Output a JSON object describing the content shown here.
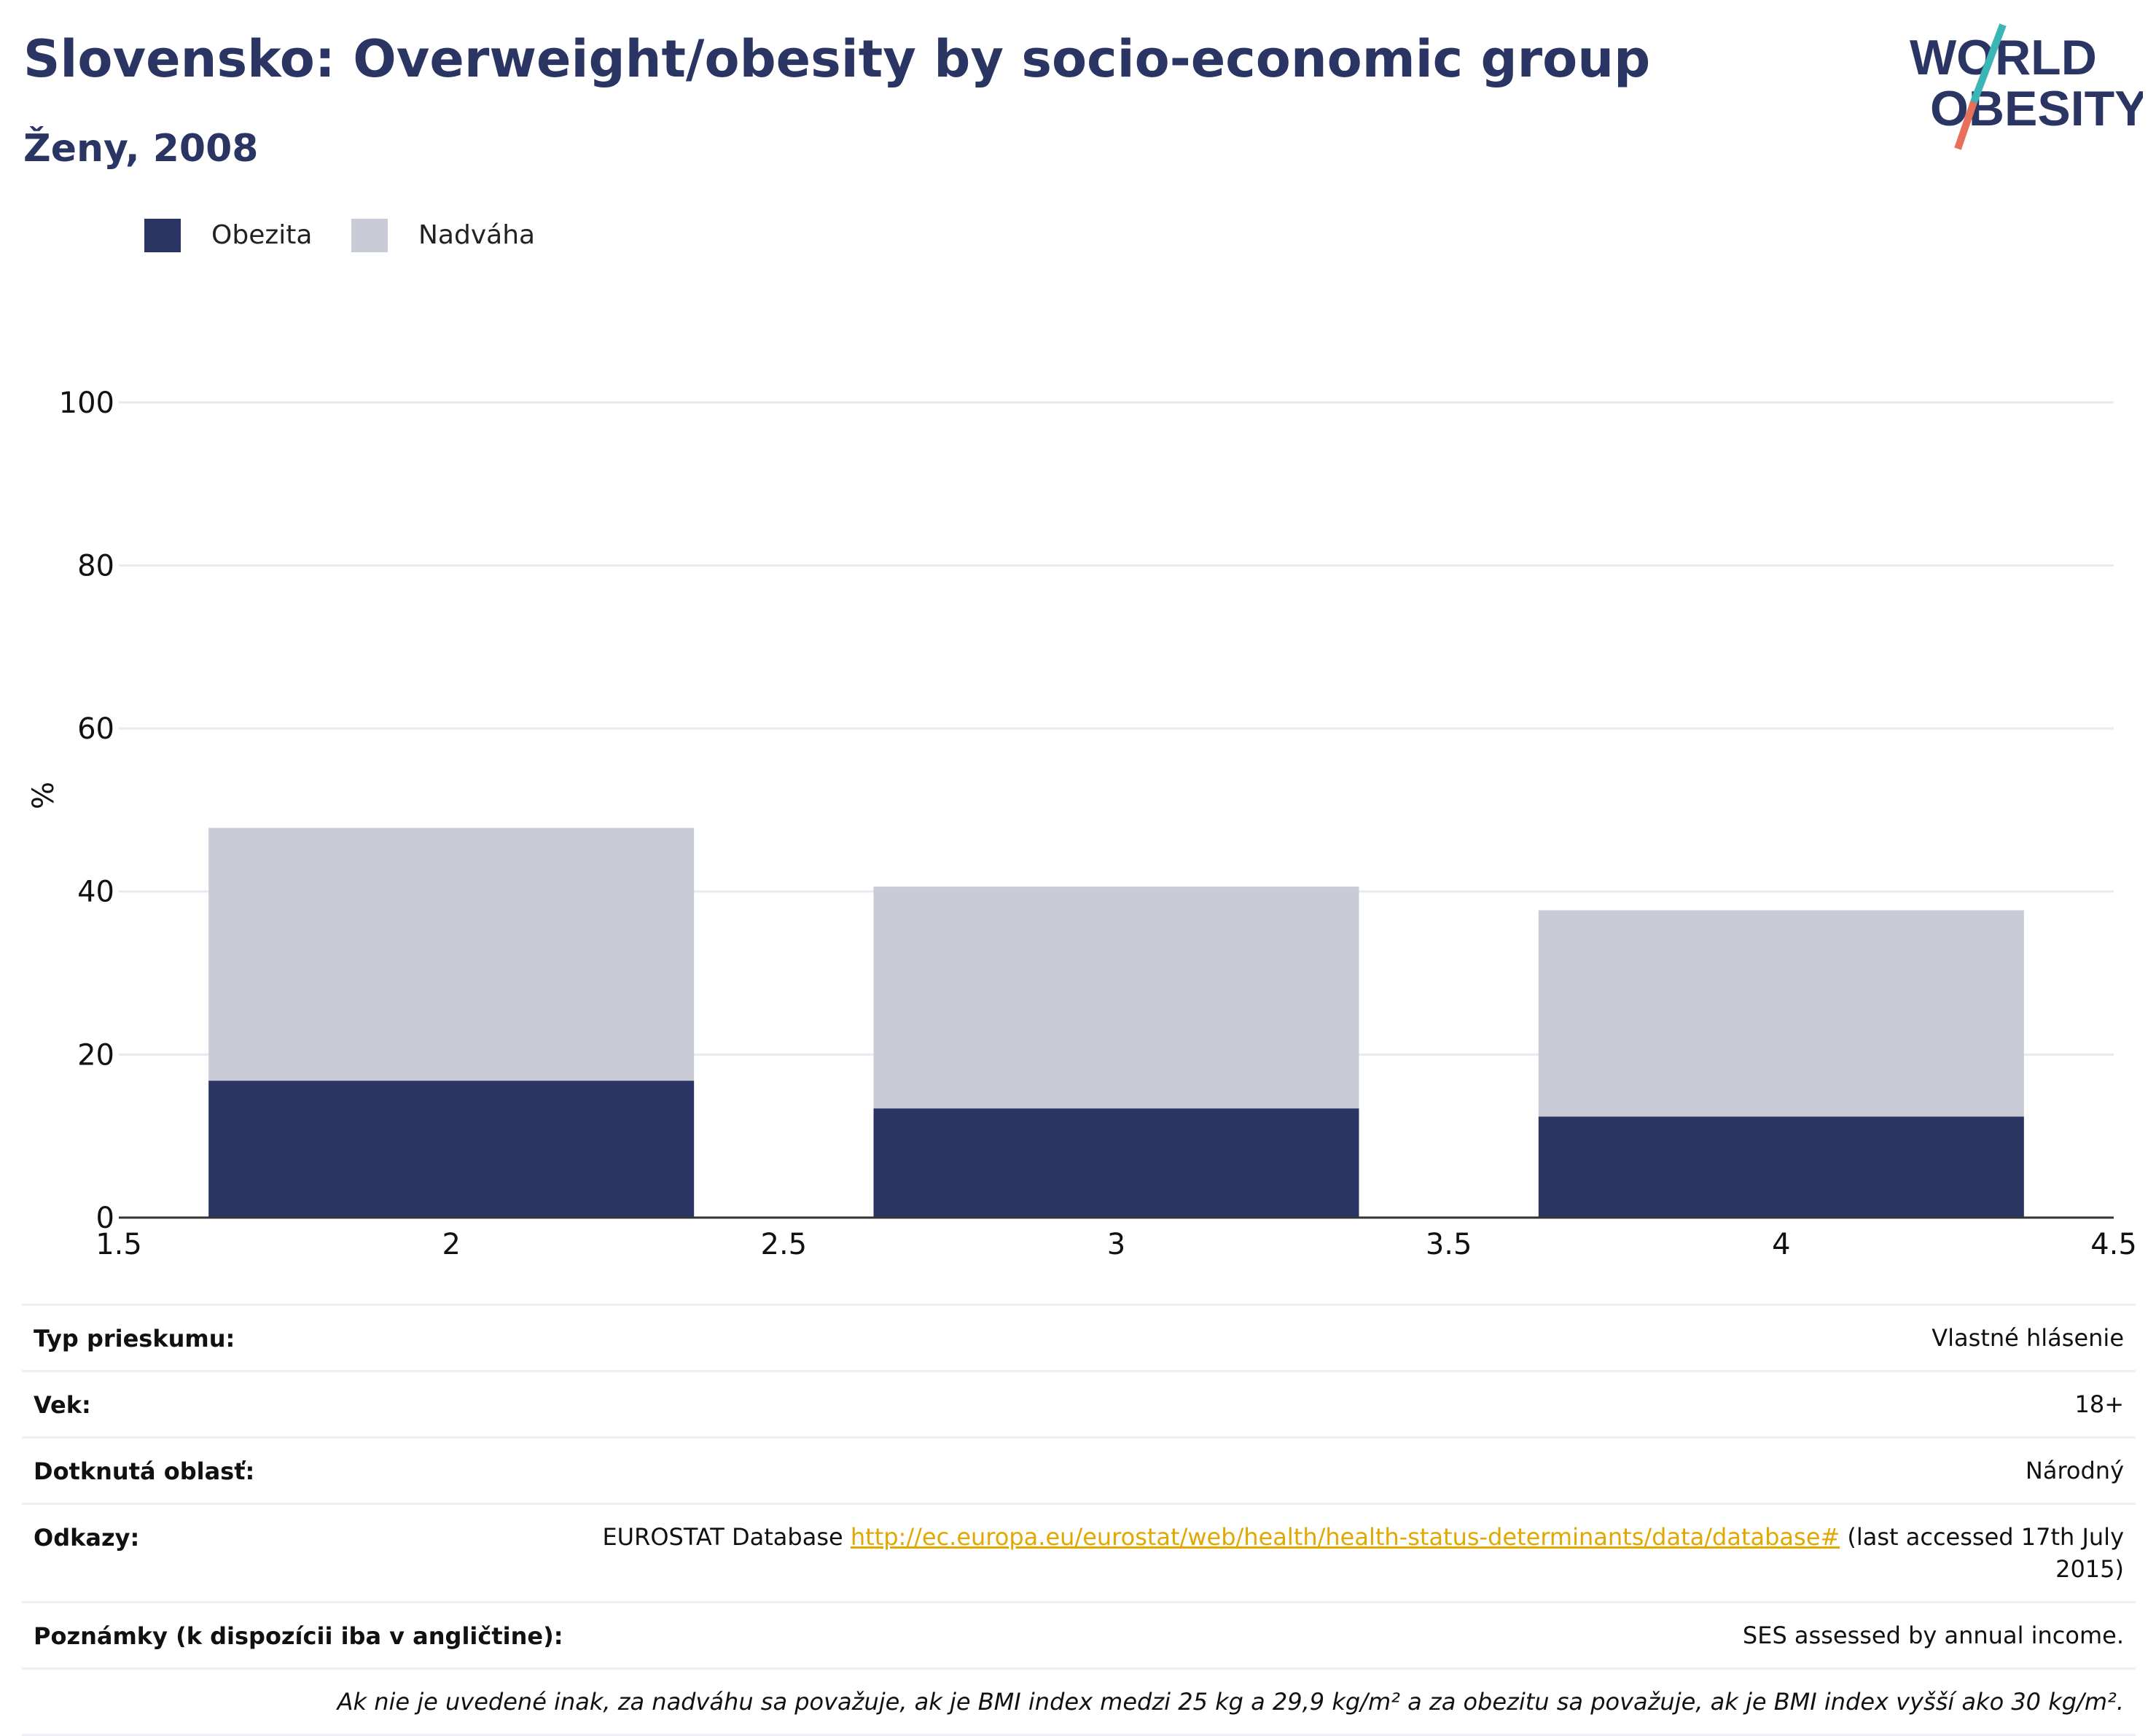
{
  "header": {
    "title": "Slovensko: Overweight/obesity by socio-economic group",
    "subtitle": "Ženy, 2008"
  },
  "logo": {
    "line1": "WORLD",
    "line2": "OBESITY",
    "text_color": "#2a3563",
    "slash_top_color": "#3bb5b5",
    "slash_bottom_color": "#e8705a"
  },
  "legend": [
    {
      "label": "Obezita",
      "color": "#2a3563"
    },
    {
      "label": "Nadváha",
      "color": "#c9ccd7"
    }
  ],
  "chart_data": {
    "type": "bar",
    "stacked": true,
    "x": [
      2,
      3,
      4
    ],
    "series": [
      {
        "name": "Obezita",
        "values": [
          16.8,
          13.4,
          12.4
        ],
        "color": "#2a3563"
      },
      {
        "name": "Nadváha",
        "values": [
          31.0,
          27.2,
          25.3
        ],
        "color": "#c9ccd7"
      }
    ],
    "xlim": [
      1.5,
      4.5
    ],
    "ylim": [
      0,
      110
    ],
    "x_ticks": [
      "1.5",
      "2",
      "2.5",
      "3",
      "3.5",
      "4",
      "4.5"
    ],
    "y_ticks": [
      "0",
      "20",
      "40",
      "60",
      "80",
      "100"
    ],
    "ylabel": "%",
    "grid": true,
    "legend_position": "top-left"
  },
  "info": {
    "survey_type_label": "Typ prieskumu:",
    "survey_type_value": "Vlastné hlásenie",
    "age_label": "Vek:",
    "age_value": "18+",
    "area_label": "Dotknutá oblasť:",
    "area_value": "Národný",
    "refs_label": "Odkazy:",
    "refs_prefix": "EUROSTAT Database ",
    "refs_link": "http://ec.europa.eu/eurostat/web/health/health-status-determinants/data/database#",
    "refs_suffix": " (last accessed 17th July 2015)",
    "notes_label": "Poznámky (k dispozícii iba v angličtine):",
    "notes_value": "SES assessed by annual income.",
    "definition": "Ak nie je uvedené inak, za nadváhu sa považuje, ak je BMI index medzi 25 kg a 29,9 kg/m² a za obezitu sa považuje, ak je BMI index vyšší ako 30 kg/m²."
  }
}
